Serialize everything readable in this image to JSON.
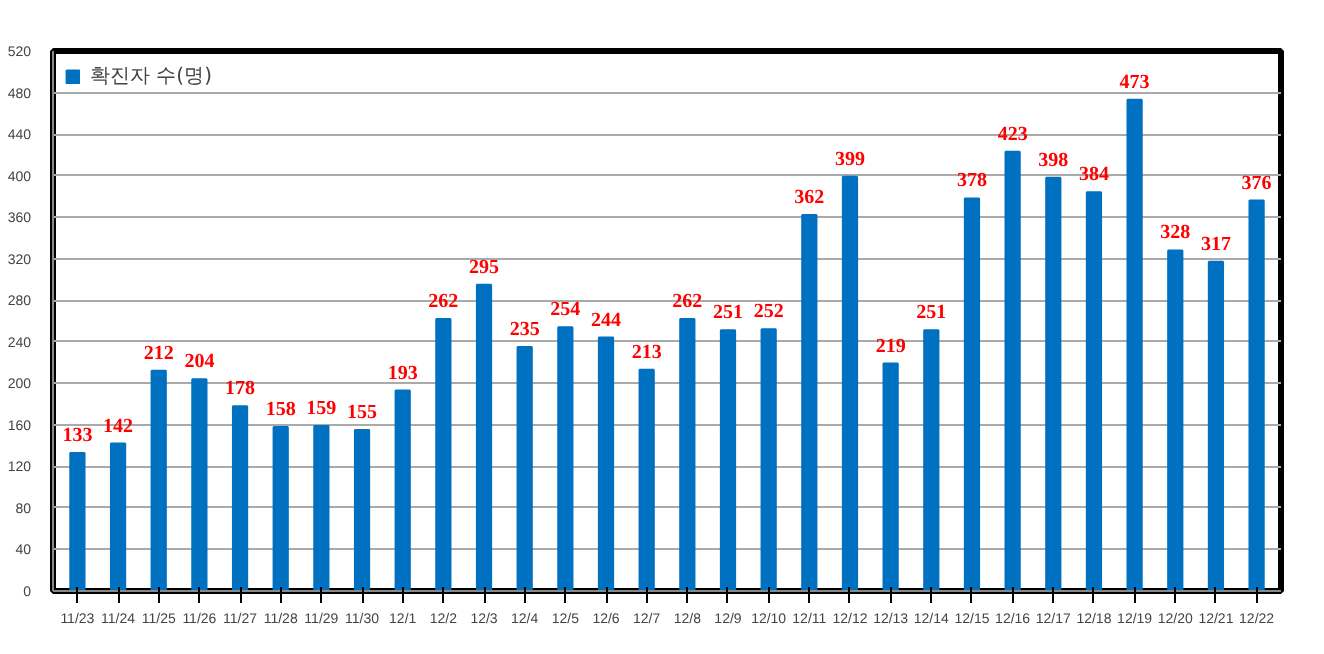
{
  "chart_data": {
    "type": "bar",
    "categories": [
      "11/23",
      "11/24",
      "11/25",
      "11/26",
      "11/27",
      "11/28",
      "11/29",
      "11/30",
      "12/1",
      "12/2",
      "12/3",
      "12/4",
      "12/5",
      "12/6",
      "12/7",
      "12/8",
      "12/9",
      "12/10",
      "12/11",
      "12/12",
      "12/13",
      "12/14",
      "12/15",
      "12/16",
      "12/17",
      "12/18",
      "12/19",
      "12/20",
      "12/21",
      "12/22"
    ],
    "series": [
      {
        "name": "확진자 수(명)",
        "color": "#0070c0",
        "values": [
          133,
          142,
          212,
          204,
          178,
          158,
          159,
          155,
          193,
          262,
          295,
          235,
          254,
          244,
          213,
          262,
          251,
          252,
          362,
          399,
          219,
          251,
          378,
          423,
          398,
          384,
          473,
          328,
          317,
          376
        ]
      }
    ],
    "ylim": [
      0,
      520
    ],
    "yticks": [
      0,
      40,
      80,
      120,
      160,
      200,
      240,
      280,
      320,
      360,
      400,
      440,
      480,
      520
    ],
    "grid": "y",
    "legend": "top left",
    "data_labels": true
  }
}
